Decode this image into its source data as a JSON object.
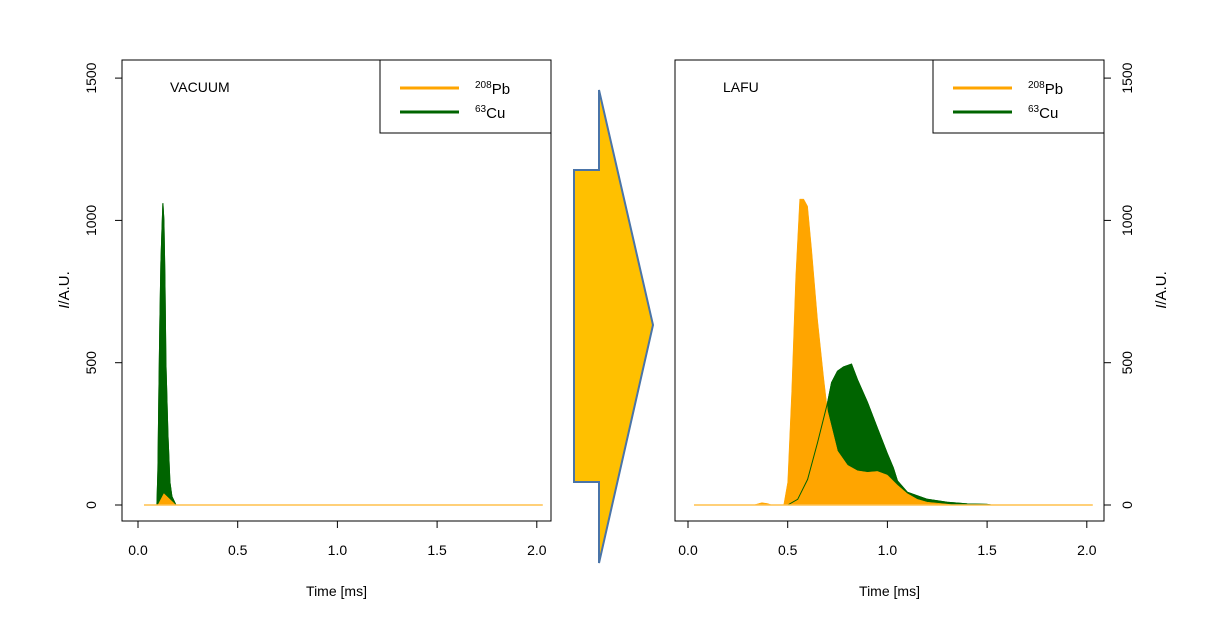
{
  "chart_data": [
    {
      "type": "area",
      "panel": "left",
      "label": "VACUUM",
      "xlabel": "Time [ms]",
      "ylabel_italic": "I",
      "ylabel_rest": "/A.U.",
      "xlim": [
        -0.08,
        2.07
      ],
      "ylim": [
        -55,
        1565
      ],
      "xticks": [
        "0.0",
        "0.5",
        "1.0",
        "1.5",
        "2.0"
      ],
      "yticks": [
        "0",
        "500",
        "1000",
        "1500"
      ],
      "y_axis_side": "left",
      "legend": {
        "placement": "top-right",
        "entries": [
          {
            "sup": "208",
            "name": "Pb",
            "color": "#FFA500"
          },
          {
            "sup": "63",
            "name": "Cu",
            "color": "#006400"
          }
        ]
      },
      "series": [
        {
          "name": "63Cu",
          "color": "#006400",
          "x": [
            0.095,
            0.1,
            0.105,
            0.11,
            0.115,
            0.12,
            0.125,
            0.13,
            0.135,
            0.14,
            0.15,
            0.16,
            0.17,
            0.19
          ],
          "y": [
            0,
            120,
            400,
            650,
            850,
            960,
            1060,
            1000,
            800,
            500,
            250,
            80,
            30,
            0
          ]
        },
        {
          "name": "208Pb",
          "color": "#FFA500",
          "x": [
            0.1,
            0.13,
            0.19
          ],
          "y": [
            0,
            40,
            0
          ]
        }
      ]
    },
    {
      "type": "area",
      "panel": "right",
      "label": "LAFU",
      "xlabel": "Time [ms]",
      "ylabel_italic": "I",
      "ylabel_rest": "/A.U.",
      "xlim": [
        -0.08,
        2.07
      ],
      "ylim": [
        -55,
        1565
      ],
      "xticks": [
        "0.0",
        "0.5",
        "1.0",
        "1.5",
        "2.0"
      ],
      "yticks": [
        "0",
        "500",
        "1000",
        "1500"
      ],
      "y_axis_side": "right",
      "legend": {
        "placement": "top-right",
        "entries": [
          {
            "sup": "208",
            "name": "Pb",
            "color": "#FFA500"
          },
          {
            "sup": "63",
            "name": "Cu",
            "color": "#006400"
          }
        ]
      },
      "series": [
        {
          "name": "63Cu",
          "color": "#006400",
          "x": [
            0.5,
            0.55,
            0.6,
            0.65,
            0.7,
            0.72,
            0.75,
            0.78,
            0.82,
            0.85,
            0.9,
            0.95,
            1.0,
            1.03,
            1.05,
            1.1,
            1.2,
            1.3,
            1.4,
            1.5,
            1.52
          ],
          "y": [
            0,
            20,
            90,
            220,
            360,
            430,
            470,
            485,
            495,
            440,
            360,
            270,
            180,
            130,
            85,
            45,
            20,
            10,
            4,
            2,
            0
          ]
        },
        {
          "name": "208Pb",
          "color": "#FFA500",
          "x": [
            0.33,
            0.37,
            0.4,
            0.42,
            0.48,
            0.5,
            0.52,
            0.54,
            0.56,
            0.58,
            0.6,
            0.62,
            0.65,
            0.68,
            0.7,
            0.75,
            0.8,
            0.85,
            0.9,
            0.95,
            1.0,
            1.05,
            1.1,
            1.15,
            1.2,
            1.3,
            1.33
          ],
          "y": [
            0,
            8,
            5,
            0,
            0,
            80,
            400,
            800,
            1075,
            1075,
            1050,
            900,
            650,
            450,
            330,
            190,
            140,
            120,
            115,
            118,
            105,
            70,
            40,
            20,
            10,
            3,
            0
          ]
        }
      ]
    }
  ]
}
